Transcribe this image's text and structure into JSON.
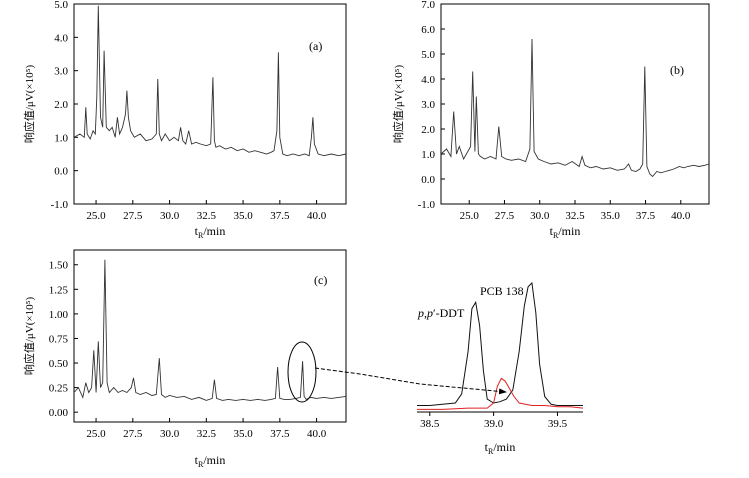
{
  "chart_data": [
    {
      "id": "a",
      "type": "line",
      "panel_label": "(a)",
      "xlabel": "t_R/min",
      "ylabel": "响应值/μV(×10⁵)",
      "xlim": [
        23.5,
        42.0
      ],
      "ylim": [
        -1.0,
        5.0
      ],
      "xticks": [
        "25.0",
        "27.5",
        "30.0",
        "32.5",
        "35.0",
        "37.5",
        "40.0"
      ],
      "yticks": [
        "-1.0",
        "0.0",
        "1.0",
        "2.0",
        "3.0",
        "4.0",
        "5.0"
      ],
      "series": [
        {
          "color": "#333333",
          "x": [
            23.5,
            23.9,
            24.2,
            24.3,
            24.4,
            24.6,
            24.8,
            24.95,
            25.05,
            25.15,
            25.3,
            25.45,
            25.55,
            25.7,
            25.9,
            26.1,
            26.3,
            26.45,
            26.6,
            26.8,
            27.0,
            27.1,
            27.2,
            27.35,
            27.6,
            28.0,
            28.4,
            28.8,
            29.1,
            29.2,
            29.3,
            29.45,
            29.7,
            30.0,
            30.3,
            30.6,
            30.75,
            30.9,
            31.1,
            31.3,
            31.5,
            31.8,
            32.1,
            32.5,
            32.8,
            32.95,
            33.05,
            33.15,
            33.4,
            33.8,
            34.2,
            34.6,
            35.0,
            35.4,
            35.8,
            36.2,
            36.6,
            36.9,
            37.1,
            37.3,
            37.4,
            37.5,
            37.7,
            38.0,
            38.4,
            38.8,
            39.2,
            39.5,
            39.65,
            39.75,
            39.85,
            40.1,
            40.5,
            41.0,
            41.5,
            42.0
          ],
          "y": [
            1.0,
            1.1,
            1.0,
            1.9,
            1.1,
            0.95,
            1.2,
            1.1,
            2.2,
            4.95,
            1.6,
            1.3,
            3.6,
            1.3,
            1.2,
            1.3,
            1.0,
            1.6,
            1.1,
            1.3,
            1.7,
            2.4,
            1.6,
            1.2,
            1.0,
            1.1,
            0.9,
            0.95,
            1.1,
            2.75,
            1.1,
            0.9,
            1.1,
            0.9,
            1.0,
            0.9,
            1.3,
            0.9,
            0.8,
            1.2,
            0.8,
            0.85,
            0.8,
            0.75,
            0.8,
            2.8,
            0.9,
            0.7,
            0.75,
            0.65,
            0.7,
            0.6,
            0.65,
            0.55,
            0.6,
            0.55,
            0.5,
            0.55,
            0.6,
            1.2,
            3.55,
            1.0,
            0.5,
            0.45,
            0.5,
            0.45,
            0.5,
            0.45,
            1.0,
            1.6,
            0.8,
            0.5,
            0.45,
            0.5,
            0.45,
            0.5
          ]
        }
      ]
    },
    {
      "id": "b",
      "type": "line",
      "panel_label": "(b)",
      "xlabel": "t_R/min",
      "ylabel": "响应值/μV(×10⁵)",
      "xlim": [
        23.0,
        42.0
      ],
      "ylim": [
        -1.0,
        7.0
      ],
      "xticks": [
        "25.0",
        "27.5",
        "30.0",
        "32.5",
        "35.0",
        "37.5",
        "40.0"
      ],
      "yticks": [
        "-1.0",
        "0.0",
        "1.0",
        "2.0",
        "3.0",
        "4.0",
        "5.0",
        "6.0",
        "7.0"
      ],
      "series": [
        {
          "color": "#333333",
          "x": [
            23.0,
            23.4,
            23.7,
            23.9,
            24.1,
            24.3,
            24.6,
            24.9,
            25.1,
            25.25,
            25.4,
            25.5,
            25.65,
            25.8,
            26.1,
            26.5,
            26.9,
            27.1,
            27.3,
            27.6,
            28.0,
            28.5,
            29.0,
            29.3,
            29.45,
            29.6,
            29.9,
            30.3,
            30.8,
            31.3,
            31.8,
            32.3,
            32.8,
            33.0,
            33.2,
            33.6,
            34.0,
            34.5,
            35.0,
            35.5,
            36.0,
            36.3,
            36.5,
            36.8,
            37.1,
            37.3,
            37.45,
            37.6,
            37.8,
            38.0,
            38.3,
            38.6,
            38.9,
            39.2,
            39.5,
            39.9,
            40.2,
            40.5,
            40.9,
            41.3,
            41.7,
            42.0
          ],
          "y": [
            1.0,
            1.2,
            0.9,
            2.7,
            1.0,
            1.3,
            0.8,
            1.1,
            1.3,
            4.3,
            1.1,
            3.3,
            1.0,
            0.9,
            0.8,
            0.9,
            0.8,
            2.1,
            0.9,
            0.8,
            0.75,
            0.8,
            0.7,
            1.2,
            5.6,
            1.1,
            0.8,
            0.7,
            0.6,
            0.65,
            0.55,
            0.7,
            0.5,
            0.9,
            0.55,
            0.45,
            0.5,
            0.4,
            0.45,
            0.35,
            0.4,
            0.6,
            0.35,
            0.3,
            0.4,
            0.6,
            4.5,
            0.5,
            0.2,
            0.1,
            0.3,
            0.25,
            0.3,
            0.35,
            0.4,
            0.5,
            0.45,
            0.5,
            0.55,
            0.5,
            0.55,
            0.6
          ]
        }
      ]
    },
    {
      "id": "c",
      "type": "line",
      "panel_label": "(c)",
      "xlabel": "t_R/min",
      "ylabel": "响应值/μV(×10⁵)",
      "xlim": [
        23.5,
        42.0
      ],
      "ylim": [
        -0.1,
        1.65
      ],
      "xticks": [
        "25.0",
        "27.5",
        "30.0",
        "32.5",
        "35.0",
        "37.5",
        "40.0"
      ],
      "yticks": [
        "0.00",
        "0.25",
        "0.50",
        "0.75",
        "1.00",
        "1.25",
        "1.50"
      ],
      "series": [
        {
          "color": "#333333",
          "x": [
            23.5,
            23.8,
            24.1,
            24.3,
            24.5,
            24.7,
            24.85,
            25.0,
            25.15,
            25.3,
            25.45,
            25.6,
            25.75,
            25.9,
            26.2,
            26.5,
            26.8,
            27.1,
            27.4,
            27.55,
            27.7,
            28.0,
            28.4,
            28.8,
            29.1,
            29.3,
            29.45,
            29.7,
            30.0,
            30.5,
            31.0,
            31.5,
            32.0,
            32.5,
            32.9,
            33.05,
            33.2,
            33.6,
            34.0,
            34.5,
            35.0,
            35.5,
            36.0,
            36.5,
            36.9,
            37.2,
            37.35,
            37.5,
            37.8,
            38.2,
            38.6,
            38.9,
            39.05,
            39.15,
            39.3,
            39.6,
            40.0,
            40.5,
            41.0,
            41.5,
            42.0
          ],
          "y": [
            0.2,
            0.25,
            0.15,
            0.3,
            0.2,
            0.25,
            0.63,
            0.2,
            0.72,
            0.25,
            0.3,
            1.55,
            0.3,
            0.2,
            0.25,
            0.2,
            0.22,
            0.2,
            0.25,
            0.35,
            0.2,
            0.18,
            0.2,
            0.17,
            0.18,
            0.55,
            0.18,
            0.15,
            0.17,
            0.15,
            0.16,
            0.13,
            0.15,
            0.12,
            0.14,
            0.33,
            0.14,
            0.12,
            0.13,
            0.12,
            0.13,
            0.12,
            0.13,
            0.12,
            0.13,
            0.14,
            0.46,
            0.14,
            0.13,
            0.13,
            0.14,
            0.15,
            0.52,
            0.16,
            0.13,
            0.15,
            0.14,
            0.15,
            0.14,
            0.15,
            0.16
          ]
        }
      ]
    },
    {
      "id": "zoom",
      "type": "line",
      "xlabel": "t_R/min",
      "xlim": [
        38.4,
        39.7
      ],
      "ylim": [
        -0.02,
        1.08
      ],
      "xticks": [
        "38.5",
        "39.0",
        "39.5"
      ],
      "annotations": [
        "PCB 138",
        "p,p'-DDT"
      ],
      "series": [
        {
          "color": "#111111",
          "x": [
            38.4,
            38.5,
            38.6,
            38.7,
            38.75,
            38.8,
            38.83,
            38.86,
            38.89,
            38.92,
            38.95,
            39.0,
            39.05,
            39.1,
            39.15,
            39.2,
            39.24,
            39.27,
            39.3,
            39.33,
            39.36,
            39.4,
            39.45,
            39.5,
            39.6,
            39.7
          ],
          "y": [
            0.03,
            0.03,
            0.04,
            0.05,
            0.12,
            0.45,
            0.78,
            0.83,
            0.65,
            0.3,
            0.08,
            0.05,
            0.06,
            0.08,
            0.15,
            0.45,
            0.8,
            0.95,
            0.98,
            0.75,
            0.35,
            0.1,
            0.04,
            0.03,
            0.03,
            0.03
          ]
        },
        {
          "color": "#e02020",
          "x": [
            38.4,
            38.6,
            38.8,
            38.95,
            39.0,
            39.03,
            39.06,
            39.09,
            39.12,
            39.16,
            39.2,
            39.25,
            39.3,
            39.4,
            39.5,
            39.6,
            39.7
          ],
          "y": [
            0.0,
            0.0,
            0.01,
            0.01,
            0.05,
            0.18,
            0.24,
            0.22,
            0.17,
            0.1,
            0.05,
            0.04,
            0.03,
            0.03,
            0.02,
            0.02,
            0.01
          ]
        }
      ]
    }
  ]
}
